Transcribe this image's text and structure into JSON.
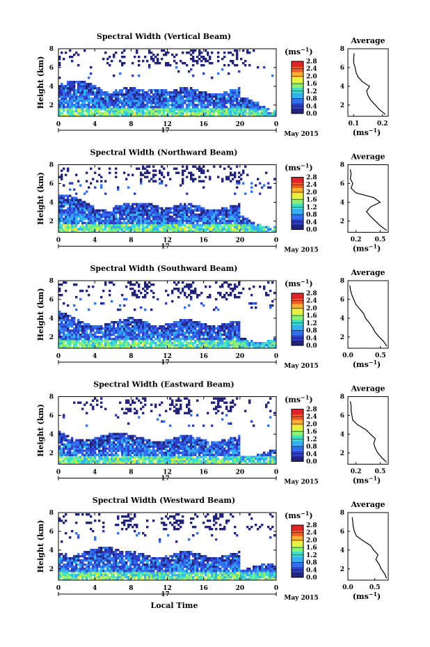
{
  "figure": {
    "xlabel": "Local Time",
    "day_label": "17",
    "date_label": "May 2015",
    "ylabel": "Height (km)",
    "cbar_unit": "(ms",
    "cbar_unit_exp": "−1",
    "avg_title": "Average",
    "avg_unit": "(ms",
    "avg_unit_exp": "−1",
    "x_ticks": [
      "0",
      "4",
      "8",
      "12",
      "16",
      "20",
      "0"
    ],
    "y_ticks": [
      "2",
      "4",
      "6",
      "8"
    ],
    "cbar_ticks": [
      "0.0",
      "0.4",
      "0.8",
      "1.2",
      "1.6",
      "2.0",
      "2.4",
      "2.8"
    ],
    "colors": {
      "scale": [
        "#22237a",
        "#2f3fc8",
        "#3170f0",
        "#35b0f0",
        "#3ee0c8",
        "#8ef070",
        "#e8f040",
        "#f8b030",
        "#f05a28",
        "#e0242a"
      ]
    }
  },
  "chart_data": [
    {
      "type": "heatmap",
      "title": "Spectral Width (Vertical Beam)",
      "x_range": [
        0,
        24
      ],
      "y_range": [
        0.8,
        8
      ],
      "color_range": [
        0.0,
        2.8
      ],
      "avg_profile": {
        "x_ticks": [
          "0.1",
          "0.2"
        ],
        "x_range": [
          0.08,
          0.22
        ],
        "heights_km": [
          1.0,
          1.5,
          2.0,
          2.5,
          3.0,
          3.5,
          4.0,
          4.5,
          5.0,
          5.5,
          6.0,
          6.5,
          7.0,
          7.5
        ],
        "values": [
          0.21,
          0.19,
          0.175,
          0.16,
          0.15,
          0.145,
          0.155,
          0.13,
          0.115,
          0.108,
          0.105,
          0.1,
          0.1,
          0.102
        ]
      }
    },
    {
      "type": "heatmap",
      "title": "Spectral Width (Northward Beam)",
      "x_range": [
        0,
        24
      ],
      "y_range": [
        0.8,
        8
      ],
      "color_range": [
        0.0,
        2.8
      ],
      "avg_profile": {
        "x_ticks": [
          "0.2",
          "0.5"
        ],
        "x_range": [
          0.1,
          0.6
        ],
        "heights_km": [
          1.0,
          1.5,
          2.0,
          2.5,
          3.0,
          3.5,
          4.0,
          4.5,
          5.0,
          5.5,
          6.0,
          6.5,
          7.0,
          7.5
        ],
        "values": [
          0.58,
          0.5,
          0.44,
          0.38,
          0.33,
          0.38,
          0.5,
          0.42,
          0.2,
          0.14,
          0.16,
          0.13,
          0.14,
          0.13
        ]
      }
    },
    {
      "type": "heatmap",
      "title": "Spectral Width (Southward Beam)",
      "x_range": [
        0,
        24
      ],
      "y_range": [
        0.8,
        8
      ],
      "color_range": [
        0.0,
        2.8
      ],
      "avg_profile": {
        "x_ticks": [
          "0.0",
          "0.5"
        ],
        "x_range": [
          0.0,
          0.62
        ],
        "heights_km": [
          1.0,
          1.5,
          2.0,
          2.5,
          3.0,
          3.5,
          4.0,
          4.5,
          5.0,
          5.5,
          6.0,
          6.5,
          7.0,
          7.5
        ],
        "values": [
          0.6,
          0.55,
          0.48,
          0.42,
          0.38,
          0.33,
          0.27,
          0.24,
          0.18,
          0.12,
          0.09,
          0.06,
          0.04,
          0.03
        ]
      }
    },
    {
      "type": "heatmap",
      "title": "Spectral Width (Eastward Beam)",
      "x_range": [
        0,
        24
      ],
      "y_range": [
        0.8,
        8
      ],
      "color_range": [
        0.0,
        2.8
      ],
      "avg_profile": {
        "x_ticks": [
          "0.2",
          "0.5"
        ],
        "x_range": [
          0.1,
          0.6
        ],
        "heights_km": [
          1.0,
          1.5,
          2.0,
          2.5,
          3.0,
          3.5,
          4.0,
          4.5,
          5.0,
          5.5,
          6.0,
          6.5,
          7.0,
          7.5
        ],
        "values": [
          0.58,
          0.52,
          0.47,
          0.44,
          0.42,
          0.44,
          0.38,
          0.32,
          0.22,
          0.16,
          0.15,
          0.14,
          0.14,
          0.13
        ]
      }
    },
    {
      "type": "heatmap",
      "title": "Spectral Width (Westward Beam)",
      "x_range": [
        0,
        24
      ],
      "y_range": [
        0.8,
        8
      ],
      "color_range": [
        0.0,
        2.8
      ],
      "avg_profile": {
        "x_ticks": [
          "0.0",
          "0.5"
        ],
        "x_range": [
          0.0,
          0.75
        ],
        "heights_km": [
          1.0,
          1.5,
          2.0,
          2.5,
          3.0,
          3.5,
          4.0,
          4.5,
          5.0,
          5.5,
          6.0,
          6.5,
          7.0,
          7.5
        ],
        "values": [
          0.72,
          0.68,
          0.62,
          0.58,
          0.52,
          0.56,
          0.48,
          0.42,
          0.28,
          0.16,
          0.12,
          0.1,
          0.09,
          0.08
        ]
      }
    }
  ]
}
